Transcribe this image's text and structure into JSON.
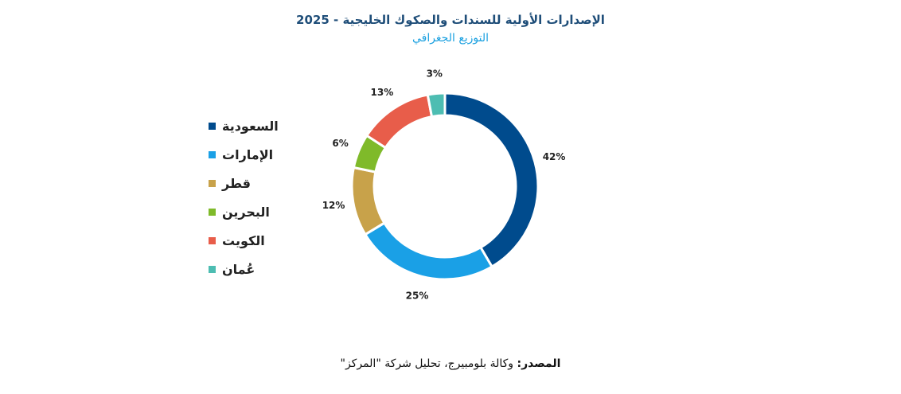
{
  "header": {
    "title": "الإصدارات الأولية للسندات والصكوك الخليجية - 2025",
    "subtitle": "التوزيع الجغرافي"
  },
  "footer": {
    "source_label": "المصدر:",
    "source_text": "وكالة بلومبيرج، تحليل شركة \"المركز\""
  },
  "chart_data": {
    "type": "pie",
    "donut": true,
    "title": "الإصدارات الأولية للسندات والصكوك الخليجية - 2025",
    "subtitle": "التوزيع الجغرافي",
    "categories": [
      "السعودية",
      "الإمارات",
      "قطر",
      "البحرين",
      "الكويت",
      "عُمان"
    ],
    "values": [
      42,
      25,
      12,
      6,
      13,
      3
    ],
    "labels": [
      "42%",
      "25%",
      "12%",
      "6%",
      "13%",
      "3%"
    ],
    "colors": [
      "#004b8d",
      "#1aa0e6",
      "#c8a24a",
      "#7fba2a",
      "#e85d4a",
      "#4dbdb2"
    ],
    "legend_position": "left"
  }
}
